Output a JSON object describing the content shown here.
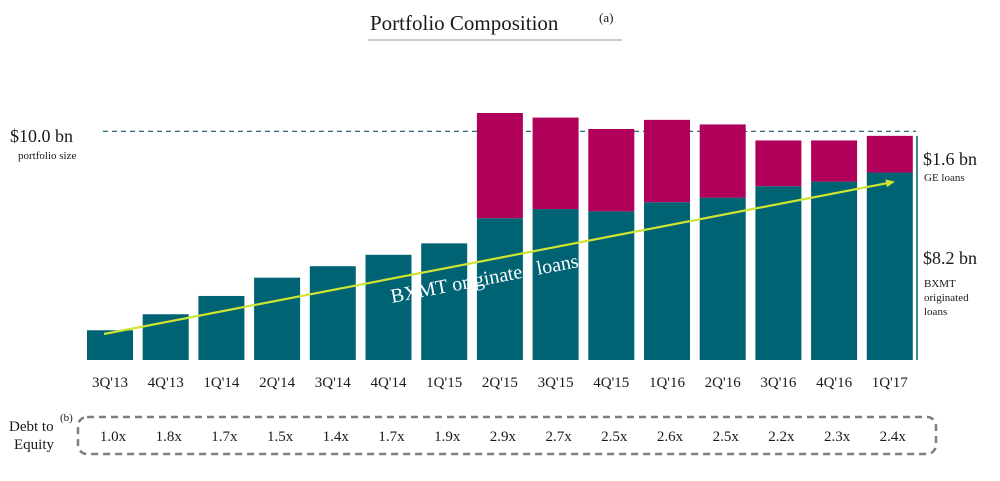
{
  "title": "Portfolio Composition",
  "title_note": "(a)",
  "colors": {
    "bxmt": "#006373",
    "ge": "#b0005a",
    "arrow": "#cfe332",
    "dashed": "#0e5a66",
    "box": "#7f7f7f"
  },
  "left_annotation": {
    "value": "$10.0 bn",
    "label": "portfolio size"
  },
  "right_annotations": {
    "ge_value": "$1.6 bn",
    "ge_label": "GE loans",
    "bxmt_value": "$8.2 bn",
    "bxmt_label_1": "BXMT",
    "bxmt_label_2": "originated",
    "bxmt_label_3": "loans"
  },
  "arrow_label": "BXMT originated loans",
  "ratio_row": {
    "label_line1": "Debt to",
    "label_line2": "Equity",
    "label_note": "(b)",
    "values": [
      "1.0x",
      "1.8x",
      "1.7x",
      "1.5x",
      "1.4x",
      "1.7x",
      "1.9x",
      "2.9x",
      "2.7x",
      "2.5x",
      "2.6x",
      "2.5x",
      "2.2x",
      "2.3x",
      "2.4x"
    ]
  },
  "chart_data": {
    "type": "bar",
    "stacked": true,
    "categories": [
      "3Q'13",
      "4Q'13",
      "1Q'14",
      "2Q'14",
      "3Q'14",
      "4Q'14",
      "1Q'15",
      "2Q'15",
      "3Q'15",
      "4Q'15",
      "1Q'16",
      "2Q'16",
      "3Q'16",
      "4Q'16",
      "1Q'17"
    ],
    "series": [
      {
        "name": "BXMT originated loans",
        "values": [
          1.3,
          2.0,
          2.8,
          3.6,
          4.1,
          4.6,
          5.1,
          6.2,
          6.6,
          6.5,
          6.9,
          7.1,
          7.6,
          7.8,
          8.2
        ]
      },
      {
        "name": "GE loans",
        "values": [
          0,
          0,
          0,
          0,
          0,
          0,
          0,
          4.6,
          4.0,
          3.6,
          3.6,
          3.2,
          2.0,
          1.8,
          1.6
        ]
      }
    ],
    "reference_line": {
      "value": 10.0,
      "label": "$10.0 bn portfolio size"
    },
    "ylim": [
      0,
      10.8
    ],
    "grid": false,
    "legend": "none"
  }
}
